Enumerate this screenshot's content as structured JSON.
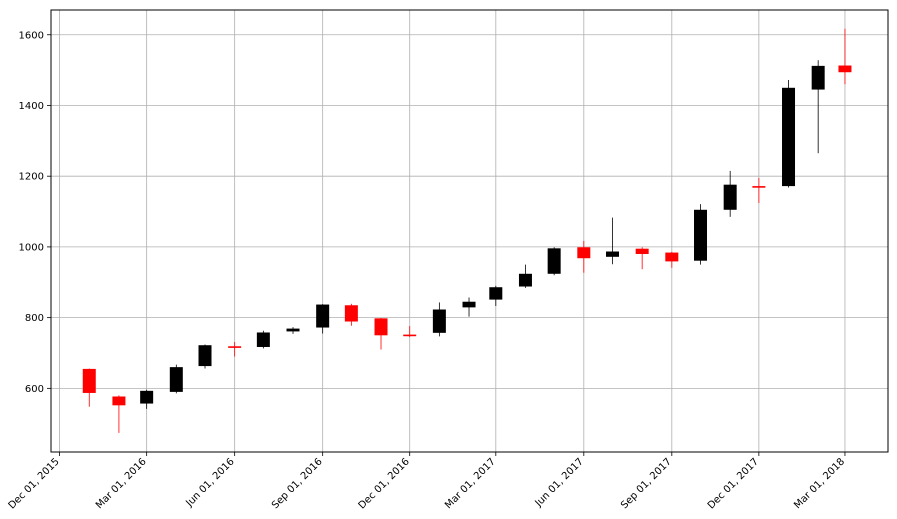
{
  "chart_data": {
    "type": "candlestick",
    "title": "",
    "xlabel": "",
    "ylabel": "",
    "grid": true,
    "colors": {
      "up": "#000000",
      "down": "#ff0000",
      "grid": "#b0b0b0"
    },
    "xlim": [
      "2015-11-22",
      "2018-04-15"
    ],
    "ylim": [
      420,
      1670
    ],
    "y_ticks": [
      600,
      800,
      1000,
      1200,
      1400,
      1600
    ],
    "x_ticks": [
      {
        "date": "2015-12-01",
        "label": "Dec 01, 2015"
      },
      {
        "date": "2016-03-01",
        "label": "Mar 01, 2016"
      },
      {
        "date": "2016-06-01",
        "label": "Jun 01, 2016"
      },
      {
        "date": "2016-09-01",
        "label": "Sep 01, 2016"
      },
      {
        "date": "2016-12-01",
        "label": "Dec 01, 2016"
      },
      {
        "date": "2017-03-01",
        "label": "Mar 01, 2017"
      },
      {
        "date": "2017-06-01",
        "label": "Jun 01, 2017"
      },
      {
        "date": "2017-09-01",
        "label": "Sep 01, 2017"
      },
      {
        "date": "2017-12-01",
        "label": "Dec 01, 2017"
      },
      {
        "date": "2018-03-01",
        "label": "Mar 01, 2018"
      }
    ],
    "candles": [
      {
        "date": "2016-01-01",
        "open": 655,
        "high": 656,
        "low": 548,
        "close": 587
      },
      {
        "date": "2016-02-01",
        "open": 577,
        "high": 580,
        "low": 474,
        "close": 552
      },
      {
        "date": "2016-03-01",
        "open": 557,
        "high": 596,
        "low": 542,
        "close": 593
      },
      {
        "date": "2016-04-01",
        "open": 590,
        "high": 667,
        "low": 586,
        "close": 660
      },
      {
        "date": "2016-05-01",
        "open": 663,
        "high": 724,
        "low": 656,
        "close": 722
      },
      {
        "date": "2016-06-01",
        "open": 719,
        "high": 731,
        "low": 690,
        "close": 715
      },
      {
        "date": "2016-07-01",
        "open": 717,
        "high": 763,
        "low": 713,
        "close": 758
      },
      {
        "date": "2016-08-01",
        "open": 761,
        "high": 773,
        "low": 754,
        "close": 769
      },
      {
        "date": "2016-09-01",
        "open": 772,
        "high": 838,
        "low": 755,
        "close": 837
      },
      {
        "date": "2016-10-01",
        "open": 835,
        "high": 839,
        "low": 777,
        "close": 789
      },
      {
        "date": "2016-11-01",
        "open": 798,
        "high": 799,
        "low": 710,
        "close": 750
      },
      {
        "date": "2016-12-01",
        "open": 752,
        "high": 776,
        "low": 745,
        "close": 749
      },
      {
        "date": "2017-01-01",
        "open": 757,
        "high": 843,
        "low": 747,
        "close": 823
      },
      {
        "date": "2017-02-01",
        "open": 829,
        "high": 857,
        "low": 803,
        "close": 845
      },
      {
        "date": "2017-03-01",
        "open": 851,
        "high": 890,
        "low": 833,
        "close": 886
      },
      {
        "date": "2017-04-01",
        "open": 888,
        "high": 950,
        "low": 884,
        "close": 924
      },
      {
        "date": "2017-05-01",
        "open": 924,
        "high": 999,
        "low": 920,
        "close": 996
      },
      {
        "date": "2017-06-01",
        "open": 999,
        "high": 1017,
        "low": 927,
        "close": 968
      },
      {
        "date": "2017-07-01",
        "open": 972,
        "high": 1083,
        "low": 951,
        "close": 987
      },
      {
        "date": "2017-08-01",
        "open": 995,
        "high": 999,
        "low": 937,
        "close": 980
      },
      {
        "date": "2017-09-01",
        "open": 984,
        "high": 986,
        "low": 941,
        "close": 959
      },
      {
        "date": "2017-10-01",
        "open": 961,
        "high": 1121,
        "low": 950,
        "close": 1105
      },
      {
        "date": "2017-11-01",
        "open": 1105,
        "high": 1215,
        "low": 1085,
        "close": 1176
      },
      {
        "date": "2017-12-01",
        "open": 1172,
        "high": 1195,
        "low": 1124,
        "close": 1169
      },
      {
        "date": "2018-01-01",
        "open": 1172,
        "high": 1472,
        "low": 1168,
        "close": 1450
      },
      {
        "date": "2018-02-01",
        "open": 1445,
        "high": 1528,
        "low": 1265,
        "close": 1512
      },
      {
        "date": "2018-03-01",
        "open": 1513,
        "high": 1617,
        "low": 1460,
        "close": 1494
      }
    ]
  }
}
